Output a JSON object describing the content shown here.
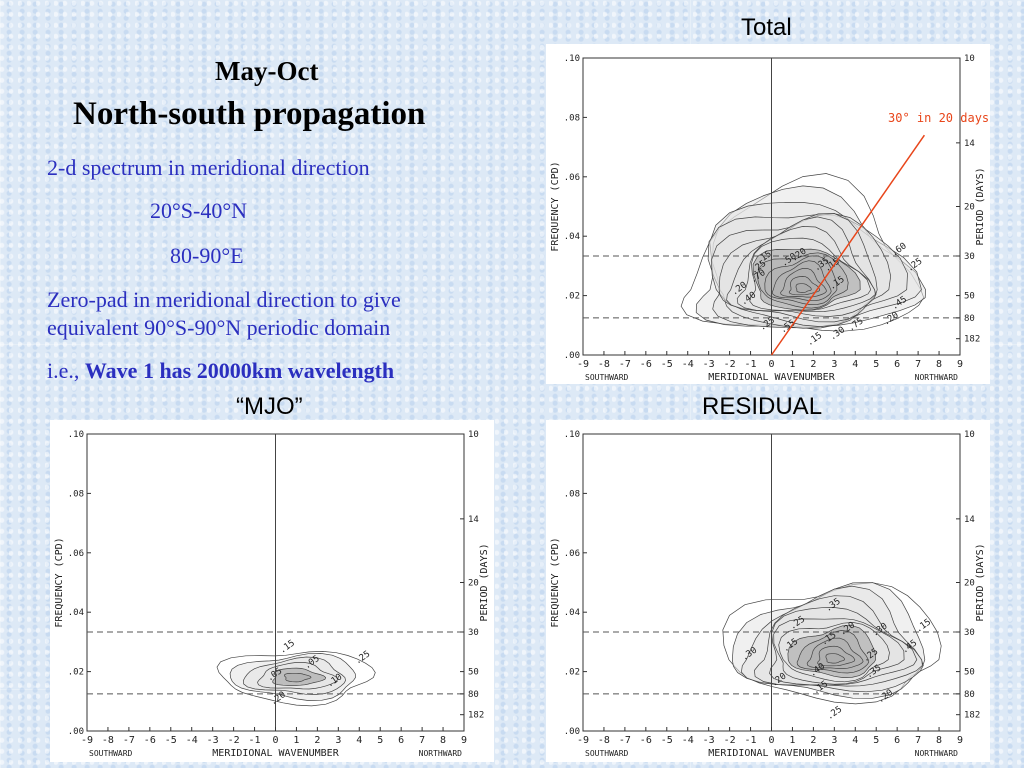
{
  "header": {
    "season": "May-Oct",
    "title": "North-south propagation"
  },
  "notes": {
    "line1": "2-d spectrum in meridional direction",
    "line2": "20°S-40°N",
    "line3": "80-90°E",
    "line4a": "Zero-pad in meridional direction to give",
    "line4b": "equivalent 90°S-90°N periodic domain",
    "line5_prefix": "i.e., ",
    "line5_bold": "Wave 1 has 20000km wavelength"
  },
  "colors": {
    "text_blue": "#2b2fbf",
    "annotation_red": "#e8461b",
    "contour_fill": "#b8b8b8"
  },
  "common_axes": {
    "xlabel": "MERIDIONAL WAVENUMBER",
    "xlabel_left": "SOUTHWARD",
    "xlabel_right": "NORTHWARD",
    "ylabel_left": "FREQUENCY (CPD)",
    "ylabel_right": "PERIOD (DAYS)",
    "x_ticks": [
      "-9",
      "-8",
      "-7",
      "-6",
      "-5",
      "-4",
      "-3",
      "-2",
      "-1",
      "0",
      "1",
      "2",
      "3",
      "4",
      "5",
      "6",
      "7",
      "8",
      "9"
    ],
    "y_ticks": [
      ".00",
      ".02",
      ".04",
      ".06",
      ".08",
      ".10"
    ],
    "period_ticks": [
      "10",
      "14",
      "20",
      "30",
      "50",
      "80",
      "182"
    ],
    "dashed_periods": [
      "30",
      "80"
    ]
  },
  "panels": [
    {
      "id": "total",
      "title": "Total",
      "annotation": "30° in 20 days",
      "peak": [
        1.5,
        0.022
      ],
      "contour_labels": [
        ".15",
        ".15",
        ".15",
        ".15",
        ".20",
        ".20",
        ".20",
        ".25",
        ".25",
        ".25",
        ".30",
        ".35",
        ".40",
        ".45",
        ".50",
        ".55",
        ".60",
        ".70",
        ".75"
      ]
    },
    {
      "id": "mjo",
      "title": "“MJO”",
      "annotation": "",
      "peak": [
        1.0,
        0.018
      ],
      "contour_labels": [
        ".05",
        ".05",
        ".10",
        ".15",
        ".20",
        ".25"
      ]
    },
    {
      "id": "residual",
      "title": "RESIDUAL",
      "annotation": "",
      "peak": [
        3.0,
        0.024
      ],
      "contour_labels": [
        ".15",
        ".15",
        ".15",
        ".15",
        ".20",
        ".20",
        ".20",
        ".25",
        ".25",
        ".25",
        ".30",
        ".30",
        ".35",
        ".35",
        ".40",
        ".45"
      ]
    }
  ]
}
